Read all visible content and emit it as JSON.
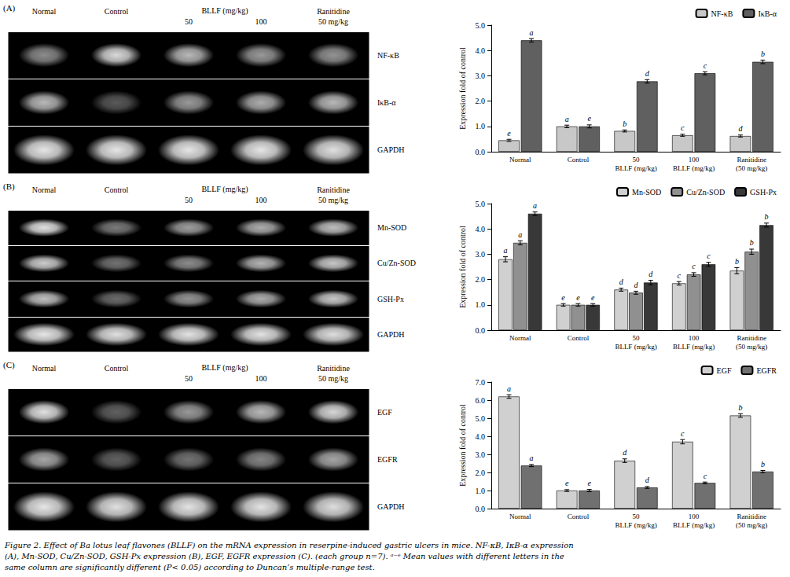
{
  "chart_data": [
    {
      "type": "bar",
      "panel_label": "(A)",
      "categories": [
        "Normal",
        "Control",
        "50\nBLLF (mg/kg)",
        "100\nBLLF (mg/kg)",
        "Ranitidine\n(50 mg/kg)"
      ],
      "series": [
        {
          "name": "NF-κB",
          "color": "#c8c8c8",
          "values": [
            0.45,
            1.0,
            0.82,
            0.65,
            0.62
          ],
          "errors": [
            0.04,
            0.05,
            0.04,
            0.04,
            0.04
          ],
          "letters": [
            "e",
            "a",
            "b",
            "c",
            "d"
          ]
        },
        {
          "name": "IκB-α",
          "color": "#606060",
          "values": [
            4.4,
            1.0,
            2.78,
            3.1,
            3.55
          ],
          "errors": [
            0.07,
            0.06,
            0.07,
            0.06,
            0.07
          ],
          "letters": [
            "a",
            "e",
            "d",
            "c",
            "b"
          ]
        }
      ],
      "ylabel": "Expression fold of control",
      "ylim": [
        0,
        5.0
      ],
      "yticks": [
        {
          "value": 0,
          "label": "0.0"
        },
        {
          "value": 1,
          "label": "1.0"
        },
        {
          "value": 2,
          "label": "2.0"
        },
        {
          "value": 3,
          "label": "3.0"
        },
        {
          "value": 4,
          "label": "4.0"
        },
        {
          "value": 5,
          "label": "5.0"
        }
      ],
      "grid": false,
      "legend": "upper right",
      "gel": {
        "columns": [
          "Normal",
          "Control",
          "50",
          "100",
          "Ranitidine\n50 mg/kg"
        ],
        "column_group": {
          "label": "BLLF (mg/kg)",
          "columns": [
            "50",
            "100"
          ]
        },
        "rows": [
          "NF-κB",
          "IκB-α",
          "GAPDH"
        ],
        "bands": [
          [
            0.55,
            0.85,
            0.72,
            0.6,
            0.58
          ],
          [
            0.72,
            0.35,
            0.6,
            0.68,
            0.72
          ],
          [
            0.9,
            0.9,
            0.9,
            0.9,
            0.88
          ]
        ]
      }
    },
    {
      "type": "bar",
      "panel_label": "(B)",
      "categories": [
        "Normal",
        "Control",
        "50\nBLLF (mg/kg)",
        "100\nBLLF (mg/kg)",
        "Ranitidine\n(50 mg/kg)"
      ],
      "series": [
        {
          "name": "Mn-SOD",
          "color": "#d0d0d0",
          "values": [
            2.8,
            1.0,
            1.6,
            1.85,
            2.35
          ],
          "errors": [
            0.1,
            0.05,
            0.06,
            0.07,
            0.12
          ],
          "letters": [
            "a",
            "e",
            "d",
            "c",
            "b"
          ]
        },
        {
          "name": "Cu/Zn-SOD",
          "color": "#909090",
          "values": [
            3.45,
            1.0,
            1.48,
            2.2,
            3.1
          ],
          "errors": [
            0.08,
            0.05,
            0.06,
            0.07,
            0.1
          ],
          "letters": [
            "a",
            "e",
            "d",
            "c",
            "b"
          ]
        },
        {
          "name": "GSH-Px",
          "color": "#383838",
          "values": [
            4.6,
            1.0,
            1.88,
            2.6,
            4.15
          ],
          "errors": [
            0.07,
            0.05,
            0.09,
            0.08,
            0.08
          ],
          "letters": [
            "a",
            "e",
            "d",
            "c",
            "b"
          ]
        }
      ],
      "ylabel": "Expression fold of control",
      "ylim": [
        0,
        5.0
      ],
      "yticks": [
        {
          "value": 0,
          "label": "0.0"
        },
        {
          "value": 1,
          "label": "1.0"
        },
        {
          "value": 2,
          "label": "2.0"
        },
        {
          "value": 3,
          "label": "3.0"
        },
        {
          "value": 4,
          "label": "4.0"
        },
        {
          "value": 5,
          "label": "5.0"
        }
      ],
      "grid": false,
      "legend": "upper right",
      "gel": {
        "columns": [
          "Normal",
          "Control",
          "50",
          "100",
          "Ranitidine\n50 mg/kg"
        ],
        "column_group": {
          "label": "BLLF (mg/kg)",
          "columns": [
            "50",
            "100"
          ]
        },
        "rows": [
          "Mn-SOD",
          "Cu/Zn-SOD",
          "GSH-Px",
          "GAPDH"
        ],
        "bands": [
          [
            0.88,
            0.48,
            0.62,
            0.68,
            0.75
          ],
          [
            0.8,
            0.45,
            0.55,
            0.7,
            0.78
          ],
          [
            0.75,
            0.42,
            0.58,
            0.68,
            0.78
          ],
          [
            0.9,
            0.88,
            0.89,
            0.89,
            0.87
          ]
        ]
      }
    },
    {
      "type": "bar",
      "panel_label": "(C)",
      "categories": [
        "Normal",
        "Control",
        "50\nBLLF (mg/kg)",
        "100\nBLLF (mg/kg)",
        "Ranitidine\n(50 mg/kg)"
      ],
      "series": [
        {
          "name": "EGF",
          "color": "#d0d0d0",
          "values": [
            6.2,
            1.0,
            2.65,
            3.7,
            5.15
          ],
          "errors": [
            0.1,
            0.05,
            0.1,
            0.12,
            0.1
          ],
          "letters": [
            "a",
            "e",
            "d",
            "c",
            "b"
          ]
        },
        {
          "name": "EGFR",
          "color": "#707070",
          "values": [
            2.38,
            1.0,
            1.17,
            1.42,
            2.05
          ],
          "errors": [
            0.06,
            0.06,
            0.05,
            0.05,
            0.06
          ],
          "letters": [
            "a",
            "e",
            "d",
            "c",
            "b"
          ]
        }
      ],
      "ylabel": "Expression fold of control",
      "ylim": [
        0,
        7.0
      ],
      "yticks": [
        {
          "value": 0,
          "label": "0.0"
        },
        {
          "value": 1,
          "label": "1.0"
        },
        {
          "value": 2,
          "label": "2.0"
        },
        {
          "value": 3,
          "label": "3.0"
        },
        {
          "value": 4,
          "label": "4.0"
        },
        {
          "value": 5,
          "label": "5.0"
        },
        {
          "value": 6,
          "label": "6.0"
        },
        {
          "value": 7,
          "label": "7.0"
        }
      ],
      "grid": false,
      "legend": "upper right",
      "gel": {
        "columns": [
          "Normal",
          "Control",
          "50",
          "100",
          "Ranitidine\n50 mg/kg"
        ],
        "column_group": {
          "label": "BLLF (mg/kg)",
          "columns": [
            "50",
            "100"
          ]
        },
        "rows": [
          "EGF",
          "EGFR",
          "GAPDH"
        ],
        "bands": [
          [
            0.88,
            0.38,
            0.6,
            0.72,
            0.84
          ],
          [
            0.65,
            0.38,
            0.45,
            0.52,
            0.65
          ],
          [
            0.9,
            0.88,
            0.89,
            0.89,
            0.87
          ]
        ]
      }
    }
  ],
  "caption": "Figure 2. Effect of Ba lotus leaf flavones (BLLF) on the mRNA expression in reserpine-induced gastric ulcers in mice. NF-κB, IκB-α expression\n(A), Mn-SOD, Cu/Zn-SOD, GSH-Px expression (B), EGF, EGFR expression (C). (each group n=7). ᵃ⁻ᵉ Mean values with different letters in the\nsame column are significantly different (P< 0.05) according to Duncan’s multiple-range test."
}
